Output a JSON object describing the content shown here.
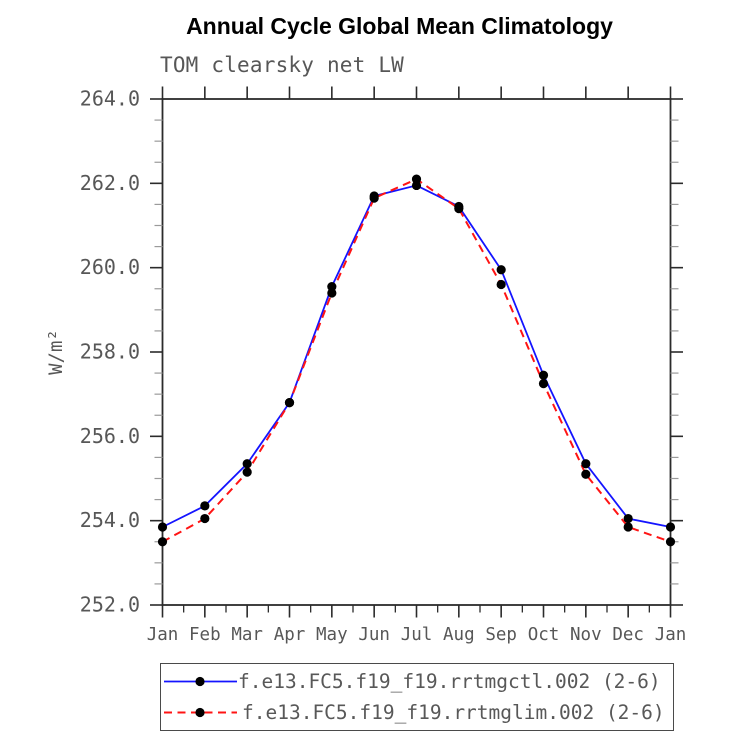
{
  "header": {
    "title": "Annual Cycle Global Mean Climatology",
    "subtitle": "TOM clearsky net LW"
  },
  "chart_data": {
    "type": "line",
    "title": "Annual Cycle Global Mean Climatology",
    "subtitle": "TOM clearsky net LW",
    "ylabel": "W/m²",
    "categories": [
      "Jan",
      "Feb",
      "Mar",
      "Apr",
      "May",
      "Jun",
      "Jul",
      "Aug",
      "Sep",
      "Oct",
      "Nov",
      "Dec",
      "Jan"
    ],
    "series": [
      {
        "name": "f.e13.FC5.f19_f19.rrtmgctl.002 (2-6)",
        "color": "#1414ff",
        "line_style": "solid",
        "marker": "filled-circle",
        "marker_color": "#000000",
        "values": [
          253.85,
          254.35,
          255.35,
          256.8,
          259.55,
          261.7,
          261.95,
          261.45,
          259.95,
          257.45,
          255.35,
          254.05,
          253.85
        ]
      },
      {
        "name": "f.e13.FC5.f19_f19.rrtmglim.002 (2-6)",
        "color": "#ff1414",
        "line_style": "dashed",
        "marker": "filled-circle",
        "marker_color": "#000000",
        "values": [
          253.5,
          254.05,
          255.15,
          256.8,
          259.4,
          261.65,
          262.1,
          261.4,
          259.6,
          257.25,
          255.1,
          253.85,
          253.5
        ]
      }
    ],
    "ylim": [
      252,
      264
    ],
    "yticks": [
      252,
      254,
      256,
      258,
      260,
      262,
      264
    ],
    "ytick_labels": [
      "252.0",
      "254.0",
      "256.0",
      "258.0",
      "260.0",
      "262.0",
      "264.0"
    ],
    "y_minor_step": 0.5,
    "x_minor_ticks": true,
    "grid": false,
    "legend_position": "bottom",
    "axis_color": "#2b2b2b",
    "minor_tick_color": "#9a9a9a",
    "tick_label_color": "#575757",
    "title_color": "#000000"
  }
}
